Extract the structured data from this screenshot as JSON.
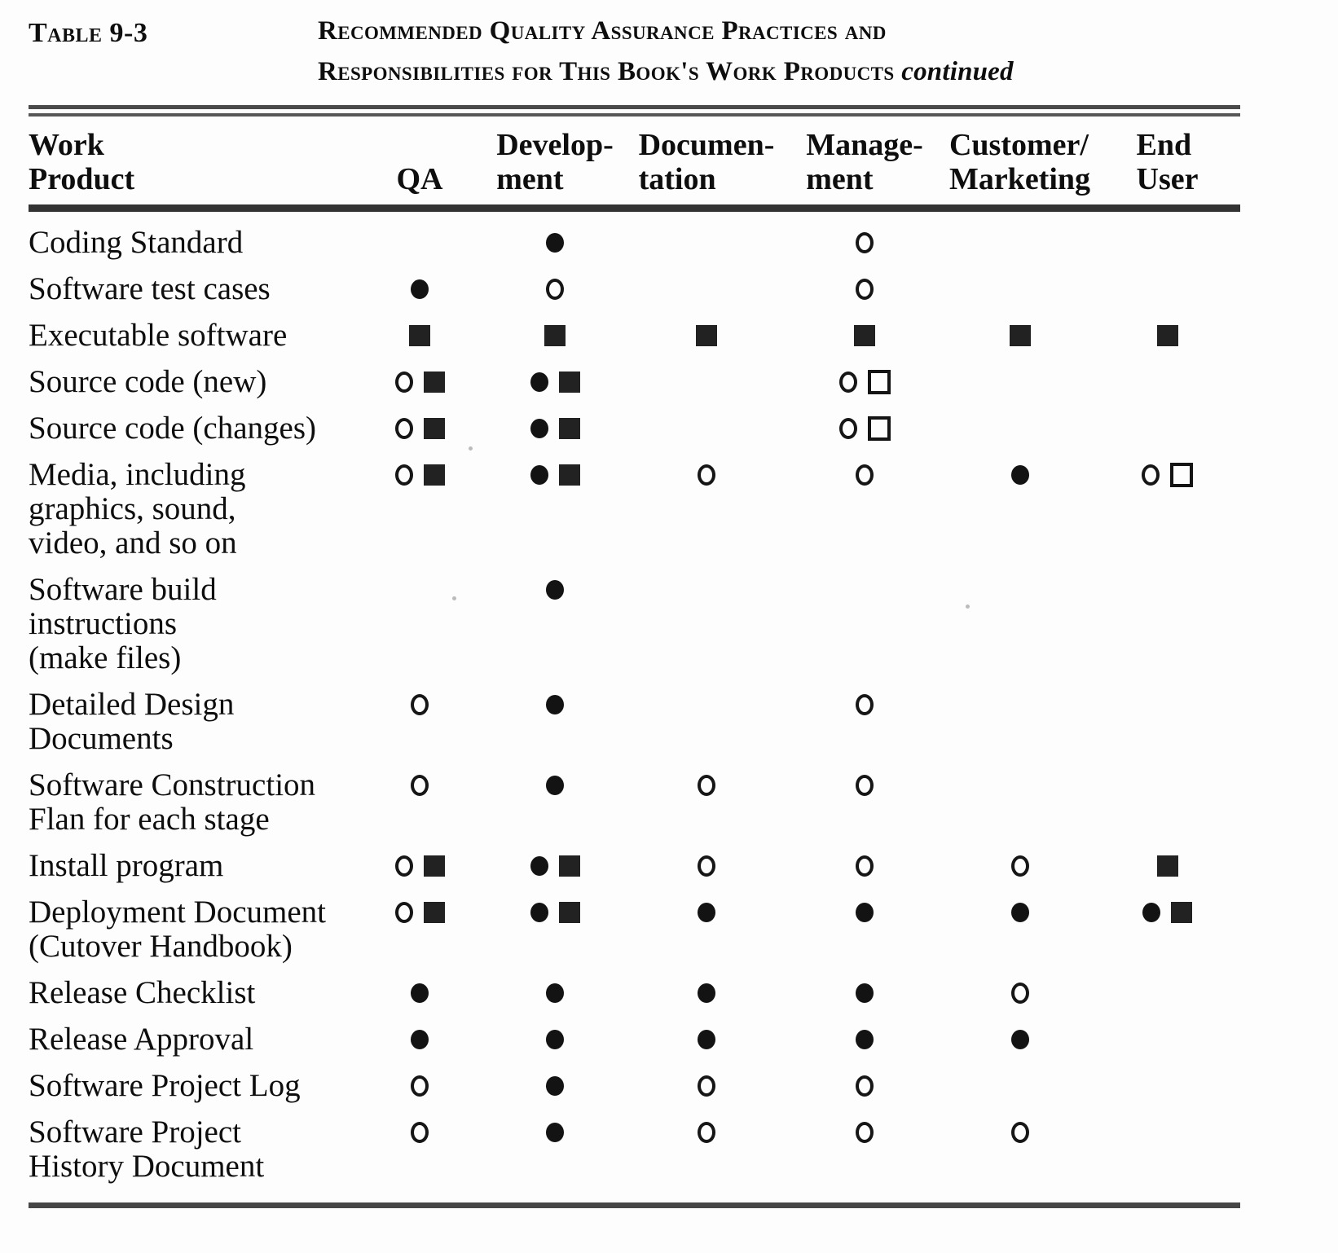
{
  "title": {
    "table_number": "Table 9-3",
    "heading_line1": "Recommended Quality Assurance Practices and",
    "heading_line2": "Responsibilities for This Book's Work Products",
    "heading_suffix": "continued"
  },
  "table": {
    "columns": [
      "Work\nProduct",
      "QA",
      "Develop-\nment",
      "Documen-\ntation",
      "Manage-\nment",
      "Customer/\nMarketing",
      "End\nUser"
    ],
    "symbol_legend": {
      "fc": "filled-circle",
      "oc": "open-circle",
      "fs": "filled-square",
      "os": "open-square"
    },
    "rows": [
      {
        "label": "Coding Standard",
        "cells": [
          [],
          [
            "fc"
          ],
          [],
          [
            "oc"
          ],
          [],
          []
        ]
      },
      {
        "label": "Software test cases",
        "cells": [
          [
            "fc"
          ],
          [
            "oc"
          ],
          [],
          [
            "oc"
          ],
          [],
          []
        ]
      },
      {
        "label": "Executable software",
        "cells": [
          [
            "fs"
          ],
          [
            "fs"
          ],
          [
            "fs"
          ],
          [
            "fs"
          ],
          [
            "fs"
          ],
          [
            "fs"
          ]
        ]
      },
      {
        "label": "Source code (new)",
        "cells": [
          [
            "oc",
            "fs"
          ],
          [
            "fc",
            "fs"
          ],
          [],
          [
            "oc",
            "os"
          ],
          [],
          []
        ]
      },
      {
        "label": "Source code (changes)",
        "cells": [
          [
            "oc",
            "fs"
          ],
          [
            "fc",
            "fs"
          ],
          [],
          [
            "oc",
            "os"
          ],
          [],
          []
        ]
      },
      {
        "label": "Media, including\ngraphics, sound,\nvideo, and so on",
        "cells": [
          [
            "oc",
            "fs"
          ],
          [
            "fc",
            "fs"
          ],
          [
            "oc"
          ],
          [
            "oc"
          ],
          [
            "fc"
          ],
          [
            "oc",
            "os"
          ]
        ]
      },
      {
        "label": "Software  build\ninstructions\n(make files)",
        "cells": [
          [],
          [
            "fc"
          ],
          [],
          [],
          [],
          []
        ]
      },
      {
        "label": "Detailed Design\nDocuments",
        "cells": [
          [
            "oc"
          ],
          [
            "fc"
          ],
          [],
          [
            "oc"
          ],
          [],
          []
        ]
      },
      {
        "label": "Software  Construction\nFlan for each stage",
        "cells": [
          [
            "oc"
          ],
          [
            "fc"
          ],
          [
            "oc"
          ],
          [
            "oc"
          ],
          [],
          []
        ]
      },
      {
        "label": "Install program",
        "cells": [
          [
            "oc",
            "fs"
          ],
          [
            "fc",
            "fs"
          ],
          [
            "oc"
          ],
          [
            "oc"
          ],
          [
            "oc"
          ],
          [
            "fs"
          ]
        ]
      },
      {
        "label": "Deployment Document\n(Cutover  Handbook)",
        "cells": [
          [
            "oc",
            "fs"
          ],
          [
            "fc",
            "fs"
          ],
          [
            "fc"
          ],
          [
            "fc"
          ],
          [
            "fc"
          ],
          [
            "fc",
            "fs"
          ]
        ]
      },
      {
        "label": "Release  Checklist",
        "cells": [
          [
            "fc"
          ],
          [
            "fc"
          ],
          [
            "fc"
          ],
          [
            "fc"
          ],
          [
            "oc"
          ],
          []
        ]
      },
      {
        "label": "Release  Approval",
        "cells": [
          [
            "fc"
          ],
          [
            "fc"
          ],
          [
            "fc"
          ],
          [
            "fc"
          ],
          [
            "fc"
          ],
          []
        ]
      },
      {
        "label": "Software Project Log",
        "cells": [
          [
            "oc"
          ],
          [
            "fc"
          ],
          [
            "oc"
          ],
          [
            "oc"
          ],
          [],
          []
        ]
      },
      {
        "label": "Software Project\nHistory Document",
        "cells": [
          [
            "oc"
          ],
          [
            "fc"
          ],
          [
            "oc"
          ],
          [
            "oc"
          ],
          [
            "oc"
          ],
          []
        ]
      }
    ]
  },
  "colors": {
    "text": "#0e0e0e",
    "rule": "#4a4a4a",
    "background": "#fdfdfd"
  }
}
